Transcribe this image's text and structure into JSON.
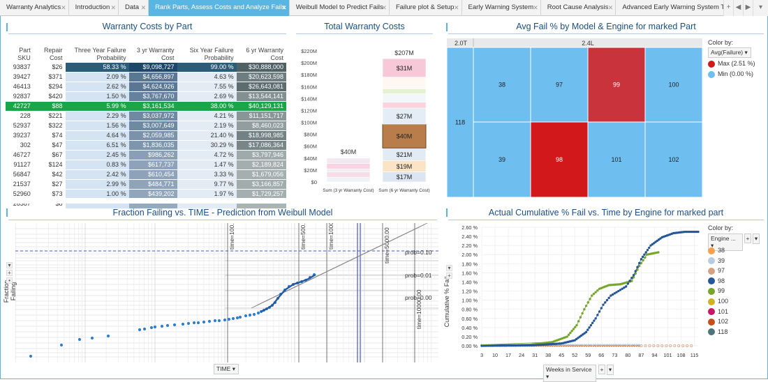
{
  "tabs": [
    "Warranty Analytics",
    "Introduction",
    "Data",
    "Rank Parts, Assess Costs and Analyze Fails",
    "Weibull Model to Predict Fails",
    "Failure plot & Setup",
    "Early Warning System",
    "Root Cause Analysis",
    "Advanced Early Warning System Theory",
    "Ac"
  ],
  "active_tab": 3,
  "tab_controls": {
    "add": "+",
    "prev": "◀",
    "next": "▶",
    "more": "▾"
  },
  "panels": {
    "warranty_costs": {
      "title": "Warranty Costs by Part",
      "headers": [
        "Part SKU",
        "Repair Cost",
        "Three Year Failure Probability",
        "3 yr Warranty Cost",
        "Six Year Failure Probability",
        "6 yr Warranty Cost"
      ],
      "rows": [
        [
          "93837",
          "$26",
          "58.33 %",
          "$9,098,727",
          "99.00 %",
          "$30,888,000"
        ],
        [
          "39427",
          "$371",
          "2.09 %",
          "$4,656,897",
          "4.63 %",
          "$20,623,598"
        ],
        [
          "46413",
          "$294",
          "2.62 %",
          "$4,624,926",
          "7.55 %",
          "$26,643,081"
        ],
        [
          "92837",
          "$420",
          "1.50 %",
          "$3,767,670",
          "2.69 %",
          "$13,544,141"
        ],
        [
          "42727",
          "$88",
          "5.99 %",
          "$3,161,534",
          "38.00 %",
          "$40,129,131"
        ],
        [
          "228",
          "$221",
          "2.29 %",
          "$3,037,972",
          "4.21 %",
          "$11,151,717"
        ],
        [
          "52937",
          "$322",
          "1.56 %",
          "$3,007,649",
          "2.19 %",
          "$8,460,023"
        ],
        [
          "39237",
          "$74",
          "4.64 %",
          "$2,059,985",
          "21.40 %",
          "$18,998,985"
        ],
        [
          "302",
          "$47",
          "6.51 %",
          "$1,836,035",
          "30.29 %",
          "$17,086,364"
        ],
        [
          "46727",
          "$67",
          "2.45 %",
          "$986,262",
          "4.72 %",
          "$3,797,946"
        ],
        [
          "91127",
          "$124",
          "0.83 %",
          "$617,737",
          "1.47 %",
          "$2,189,824"
        ],
        [
          "56847",
          "$42",
          "2.42 %",
          "$610,454",
          "3.33 %",
          "$1,679,056"
        ],
        [
          "21537",
          "$27",
          "2.99 %",
          "$484,771",
          "9.77 %",
          "$3,166,857"
        ],
        [
          "52960",
          "$73",
          "1.00 %",
          "$439,202",
          "1.97 %",
          "$1,729,257"
        ],
        [
          "26387",
          "$8",
          "",
          "",
          "",
          ""
        ]
      ],
      "selected_row": 4
    },
    "total_costs": {
      "title": "Total Warranty Costs",
      "chart_data": {
        "type": "bar",
        "categories": [
          "Sum (3 yr Warranty Cost)",
          "Sum (6 yr Warranty Cost)"
        ],
        "totals": [
          40,
          207
        ],
        "total_labels": [
          "$40M",
          "$207M"
        ],
        "segments6": [
          {
            "label": "$17M",
            "value": 17,
            "color": "#dbe6f2"
          },
          {
            "label": "$19M",
            "value": 19,
            "color": "#fbe3c6"
          },
          {
            "label": "$21M",
            "value": 21,
            "color": "#e2ebf4"
          },
          {
            "label": "$40M",
            "value": 40,
            "color": "#b87d4b"
          },
          {
            "label": "$27M",
            "value": 27,
            "color": "#e4edf5"
          },
          {
            "label": "",
            "value": 10,
            "color": "#fbd3de"
          },
          {
            "label": "",
            "value": 14,
            "color": "#f3f7fa"
          },
          {
            "label": "",
            "value": 8,
            "color": "#e6f0d3"
          },
          {
            "label": "",
            "value": 20,
            "color": "#fff8f2"
          },
          {
            "label": "$31M",
            "value": 31,
            "color": "#f7c8d7"
          }
        ],
        "segments3": [
          {
            "value": 8,
            "color": "#eef2f7"
          },
          {
            "value": 9,
            "color": "#f6dde6"
          },
          {
            "value": 5,
            "color": "#f0eef0"
          },
          {
            "value": 9,
            "color": "#f9d3e0"
          },
          {
            "value": 9,
            "color": "#f3e8ee"
          }
        ],
        "yticks": [
          "$0",
          "$20M",
          "$40M",
          "$60M",
          "$80M",
          "$100M",
          "$120M",
          "$140M",
          "$160M",
          "$180M",
          "$200M",
          "$220M"
        ],
        "ylim": [
          0,
          220
        ]
      }
    },
    "heatmap": {
      "title": "Avg Fail % by Model & Engine for marked Part",
      "models": [
        "2.0T",
        "2.4L"
      ],
      "cells": [
        {
          "label": "118",
          "kind": "min"
        },
        {
          "label": "38",
          "kind": "min"
        },
        {
          "label": "97",
          "kind": "min"
        },
        {
          "label": "99",
          "kind": "maxish"
        },
        {
          "label": "100",
          "kind": "min"
        },
        {
          "label": "39",
          "kind": "min"
        },
        {
          "label": "98",
          "kind": "max"
        },
        {
          "label": "101",
          "kind": "min"
        },
        {
          "label": "102",
          "kind": "min"
        }
      ],
      "color_by_label": "Color by:",
      "color_by_value": "Avg(Failure)",
      "legend": [
        {
          "label": "Max (2.51 %)",
          "color": "#d3181c"
        },
        {
          "label": "Min (0.00 %)",
          "color": "#6fbef0"
        }
      ]
    },
    "weibull": {
      "title": "Fraction Failing vs. TIME - Prediction from Weibull Model",
      "ylabel": "Fraction Failing",
      "xlabel": "TIME",
      "time_lines": [
        "time=100.00",
        "time=500.00",
        "time=1000.00",
        "time=5000.00",
        "time=10000.00"
      ],
      "prob_lines": [
        "prob=0.10",
        "prob=0.01",
        "prob=0.00"
      ],
      "controls": {
        "dropdown": "▾",
        "plus": "+",
        "dot": "•"
      }
    },
    "cumulative": {
      "title": "Actual Cumulative % Fail vs. Time by Engine for marked part",
      "ylabel": "Cumulative % Fail",
      "xlabel": "Weeks in Service",
      "color_by_label": "Color by:",
      "color_by_value": "Engine ...",
      "controls": {
        "dropdown": "▾",
        "plus": "+"
      },
      "chart_data": {
        "type": "scatter",
        "x_ticks": [
          3,
          10,
          17,
          24,
          31,
          38,
          45,
          52,
          59,
          66,
          73,
          80,
          87,
          94,
          101,
          108,
          115
        ],
        "y_ticks": [
          "0.00 %",
          "0.20 %",
          "0.40 %",
          "0.60 %",
          "0.80 %",
          "1.00 %",
          "1.20 %",
          "1.40 %",
          "1.60 %",
          "1.80 %",
          "2.00 %",
          "2.20 %",
          "2.40 %",
          "2.60 %"
        ],
        "ylim": [
          0,
          2.6
        ],
        "series": [
          {
            "name": "38",
            "color": "#f6a24b"
          },
          {
            "name": "39",
            "color": "#b7ccde"
          },
          {
            "name": "97",
            "color": "#d5a183"
          },
          {
            "name": "98",
            "color": "#24569a"
          },
          {
            "name": "99",
            "color": "#77a52a"
          },
          {
            "name": "100",
            "color": "#cdb320"
          },
          {
            "name": "101",
            "color": "#c61866"
          },
          {
            "name": "102",
            "color": "#c5501d"
          },
          {
            "name": "118",
            "color": "#4e7679"
          }
        ],
        "curve98": [
          [
            3,
            0
          ],
          [
            30,
            0.01
          ],
          [
            45,
            0.05
          ],
          [
            52,
            0.12
          ],
          [
            58,
            0.3
          ],
          [
            63,
            0.6
          ],
          [
            67,
            0.9
          ],
          [
            71,
            1.1
          ],
          [
            75,
            1.2
          ],
          [
            79,
            1.3
          ],
          [
            83,
            1.55
          ],
          [
            87,
            1.9
          ],
          [
            92,
            2.2
          ],
          [
            98,
            2.38
          ],
          [
            104,
            2.47
          ],
          [
            110,
            2.5
          ],
          [
            117,
            2.5
          ]
        ],
        "curve99": [
          [
            3,
            0
          ],
          [
            28,
            0.02
          ],
          [
            40,
            0.08
          ],
          [
            48,
            0.2
          ],
          [
            53,
            0.45
          ],
          [
            57,
            0.8
          ],
          [
            61,
            1.1
          ],
          [
            65,
            1.25
          ],
          [
            70,
            1.33
          ],
          [
            76,
            1.35
          ],
          [
            82,
            1.42
          ],
          [
            86,
            1.75
          ],
          [
            90,
            2.0
          ],
          [
            96,
            2.05
          ]
        ],
        "flat_series_end": [
          [
            102,
            97
          ],
          [
            87,
            38
          ]
        ]
      }
    }
  }
}
